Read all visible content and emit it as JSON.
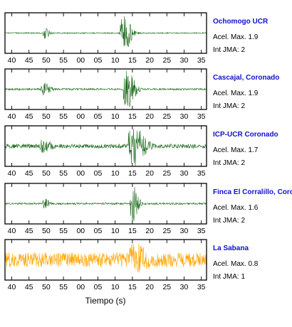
{
  "chart_data": {
    "type": "line",
    "title": "",
    "xlabel": "Tiempo (s)",
    "ylabel": "",
    "x_tick_labels": [
      "40",
      "45",
      "50",
      "55",
      "00",
      "05",
      "10",
      "15",
      "20",
      "25",
      "30",
      "35"
    ],
    "grid": false,
    "series": [
      {
        "name": "Ochomogo UCR",
        "accel_label": "Acel. Max. 1.9",
        "jma_label": "Int JMA: 2",
        "color": "#1f6b1f",
        "bursts": [
          {
            "center_tick": 1.95,
            "width": 0.3,
            "amp": 0.35
          },
          {
            "center_tick": 6.55,
            "width": 0.55,
            "amp": 1.0
          }
        ],
        "noise": 0.03
      },
      {
        "name": "Cascajal, Coronado",
        "accel_label": "Acel. Max. 1.9",
        "jma_label": "Int JMA: 2",
        "color": "#1f6b1f",
        "bursts": [
          {
            "center_tick": 1.9,
            "width": 0.45,
            "amp": 0.32
          },
          {
            "center_tick": 6.75,
            "width": 0.55,
            "amp": 1.0
          }
        ],
        "noise": 0.05
      },
      {
        "name": "ICP-UCR Coronado",
        "accel_label": "Acel. Max. 1.7",
        "jma_label": "Int JMA: 2",
        "color": "#1f6b1f",
        "bursts": [
          {
            "center_tick": 1.9,
            "width": 0.55,
            "amp": 0.3
          },
          {
            "center_tick": 7.15,
            "width": 0.75,
            "amp": 1.0
          }
        ],
        "noise": 0.12
      },
      {
        "name": "Finca El Corralillo, Coronado",
        "accel_label": "Acel. Max. 1.6",
        "jma_label": "Int JMA: 2",
        "color": "#1f6b1f",
        "bursts": [
          {
            "center_tick": 1.95,
            "width": 0.3,
            "amp": 0.25
          },
          {
            "center_tick": 7.05,
            "width": 0.4,
            "amp": 1.0
          }
        ],
        "noise": 0.05
      },
      {
        "name": "La Sabana",
        "accel_label": "Acel. Max. 0.8",
        "jma_label": "Int JMA: 1",
        "color": "#ffa500",
        "bursts": [
          {
            "center_tick": 7.2,
            "width": 0.8,
            "amp": 0.55
          },
          {
            "center_tick": 9.6,
            "width": 0.05,
            "amp": 1.0
          }
        ],
        "noise": 0.4
      }
    ]
  }
}
